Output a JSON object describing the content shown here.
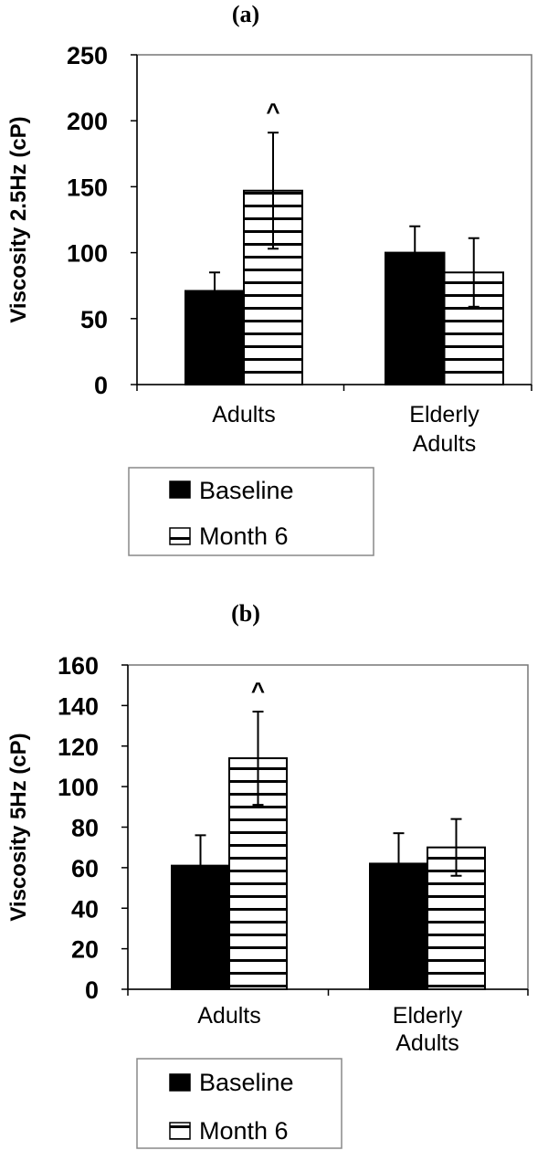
{
  "chart_data": [
    {
      "panel": "(a)",
      "type": "bar",
      "title": "",
      "xlabel": "",
      "ylabel": "Viscosity 2.5Hz (cP)",
      "ylim": [
        0,
        250
      ],
      "yticks": [
        "0",
        "50",
        "100",
        "150",
        "200",
        "250"
      ],
      "categories": [
        [
          "Adults"
        ],
        [
          "Elderly",
          "Adults"
        ]
      ],
      "series": [
        {
          "name": "Baseline",
          "fill": "solid",
          "color": "#000000",
          "values": [
            71,
            100
          ],
          "errors": [
            14,
            20
          ]
        },
        {
          "name": "Month 6",
          "fill": "horizontal-stripes",
          "color": "#000000",
          "values": [
            147,
            85
          ],
          "errors": [
            44,
            26
          ]
        }
      ],
      "annotations": [
        {
          "text": "^",
          "category": 0,
          "series": 1
        }
      ],
      "grid": false,
      "legend": "below"
    },
    {
      "panel": "(b)",
      "type": "bar",
      "title": "",
      "xlabel": "",
      "ylabel": "Viscosity 5Hz (cP)",
      "ylim": [
        0,
        160
      ],
      "yticks": [
        "0",
        "20",
        "40",
        "60",
        "80",
        "100",
        "120",
        "140",
        "160"
      ],
      "categories": [
        [
          "Adults"
        ],
        [
          "Elderly",
          "Adults"
        ]
      ],
      "series": [
        {
          "name": "Baseline",
          "fill": "solid",
          "color": "#000000",
          "values": [
            61,
            62
          ],
          "errors": [
            15,
            15
          ]
        },
        {
          "name": "Month 6",
          "fill": "horizontal-stripes",
          "color": "#000000",
          "values": [
            114,
            70
          ],
          "errors": [
            23,
            14
          ]
        }
      ],
      "annotations": [
        {
          "text": "^",
          "category": 0,
          "series": 1
        }
      ],
      "grid": false,
      "legend": "below"
    }
  ]
}
